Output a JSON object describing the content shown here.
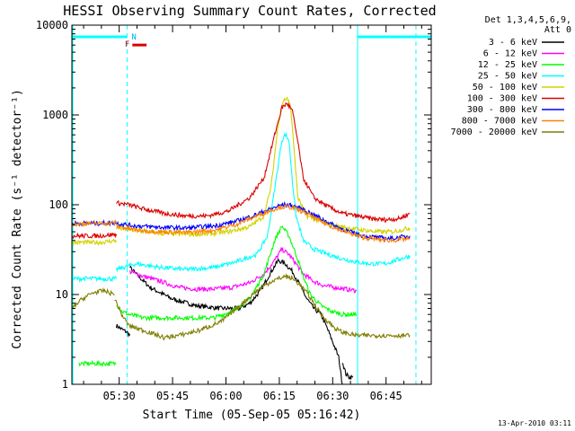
{
  "chart_data": {
    "type": "line",
    "title": "HESSI Observing Summary Count Rates, Corrected",
    "xlabel": "Start Time (05-Sep-05 05:16:42)",
    "ylabel": "Corrected Count Rate (s⁻¹ detector⁻¹)",
    "x_unit": "minutes after 05:16:42",
    "xlim": [
      0,
      101
    ],
    "ylim": [
      1,
      10000
    ],
    "yscale": "log",
    "x_ticks": [
      {
        "value": 13.3,
        "label": "05:30"
      },
      {
        "value": 28.3,
        "label": "05:45"
      },
      {
        "value": 43.3,
        "label": "06:00"
      },
      {
        "value": 58.3,
        "label": "06:15"
      },
      {
        "value": 73.3,
        "label": "06:30"
      },
      {
        "value": 88.3,
        "label": "06:45"
      }
    ],
    "y_ticks": [
      {
        "value": 1,
        "label": "1"
      },
      {
        "value": 10,
        "label": "10"
      },
      {
        "value": 100,
        "label": "100"
      },
      {
        "value": 1000,
        "label": "1000"
      },
      {
        "value": 10000,
        "label": "10000"
      }
    ],
    "legend": {
      "header": [
        "Det 1,3,4,5,6,9,",
        "Att 0"
      ],
      "placement": "right"
    },
    "series": [
      {
        "name": "3 - 6 keV",
        "color": "#000000",
        "segments": [
          [
            [
              12.5,
              4.5
            ],
            [
              14.5,
              4
            ],
            [
              15.5,
              3.8
            ],
            [
              16.3,
              3.5
            ]
          ],
          [
            [
              16.3,
              20
            ],
            [
              18,
              17
            ],
            [
              22,
              12
            ],
            [
              28,
              9
            ],
            [
              35,
              7.5
            ],
            [
              42,
              7
            ],
            [
              47,
              7
            ],
            [
              50,
              8
            ],
            [
              53,
              11
            ],
            [
              56,
              18
            ],
            [
              58,
              24
            ],
            [
              60,
              22
            ],
            [
              62,
              18
            ],
            [
              64,
              13
            ],
            [
              66,
              9
            ],
            [
              68,
              7
            ],
            [
              70,
              6
            ],
            [
              72,
              4
            ],
            [
              75,
              2
            ],
            [
              76,
              1
            ]
          ],
          [
            [
              76,
              1.8
            ],
            [
              77,
              1.3
            ],
            [
              78,
              1.2
            ],
            [
              79,
              1.2
            ]
          ]
        ]
      },
      {
        "name": "6 - 12 keV",
        "color": "#ff00ff",
        "segments": [
          [
            [
              16.3,
              18
            ],
            [
              20,
              16
            ],
            [
              25,
              14
            ],
            [
              30,
              12
            ],
            [
              35,
              11.5
            ],
            [
              40,
              11.5
            ],
            [
              45,
              12
            ],
            [
              50,
              13.5
            ],
            [
              54,
              17
            ],
            [
              57,
              24
            ],
            [
              59,
              32
            ],
            [
              61,
              28
            ],
            [
              63,
              22
            ],
            [
              65,
              17
            ],
            [
              68,
              14
            ],
            [
              71,
              12.5
            ],
            [
              74,
              12
            ],
            [
              77,
              11.5
            ],
            [
              80,
              11
            ]
          ]
        ]
      },
      {
        "name": "12 - 25 keV",
        "color": "#00ff00",
        "segments": [
          [
            [
              2,
              1.7
            ],
            [
              12.5,
              1.7
            ]
          ],
          [
            [
              12.5,
              8
            ],
            [
              14,
              6.5
            ],
            [
              16,
              6
            ],
            [
              20,
              5.5
            ],
            [
              30,
              5.5
            ],
            [
              40,
              5.5
            ],
            [
              45,
              6.5
            ],
            [
              50,
              9
            ],
            [
              54,
              17
            ],
            [
              57,
              40
            ],
            [
              59,
              58
            ],
            [
              61,
              45
            ],
            [
              63,
              28
            ],
            [
              65,
              16
            ],
            [
              67,
              10
            ],
            [
              70,
              7.5
            ],
            [
              73,
              6.5
            ],
            [
              76,
              6
            ],
            [
              80,
              6
            ]
          ]
        ]
      },
      {
        "name": "25 - 50 keV",
        "color": "#00ffff",
        "segments": [
          [
            [
              0,
              15
            ],
            [
              3,
              15
            ],
            [
              6,
              15
            ],
            [
              9,
              15
            ],
            [
              12.5,
              15
            ]
          ],
          [
            [
              12.5,
              19
            ],
            [
              18,
              22
            ],
            [
              25,
              20
            ],
            [
              32,
              19
            ],
            [
              40,
              20
            ],
            [
              46,
              23
            ],
            [
              52,
              28
            ],
            [
              55,
              45
            ],
            [
              57,
              150
            ],
            [
              59,
              520
            ],
            [
              60,
              610
            ],
            [
              61,
              520
            ],
            [
              62,
              180
            ],
            [
              63,
              75
            ],
            [
              65,
              40
            ],
            [
              68,
              32
            ],
            [
              72,
              28
            ],
            [
              76,
              25
            ],
            [
              80,
              23
            ],
            [
              84,
              22
            ],
            [
              88,
              22
            ],
            [
              91,
              24
            ],
            [
              95,
              27
            ]
          ]
        ]
      },
      {
        "name": "50 - 100 keV",
        "color": "#d2d200",
        "segments": [
          [
            [
              0,
              38
            ],
            [
              4,
              38
            ],
            [
              8,
              38
            ],
            [
              12.5,
              40
            ]
          ],
          [
            [
              12.5,
              55
            ],
            [
              18,
              52
            ],
            [
              25,
              48
            ],
            [
              32,
              47
            ],
            [
              38,
              47
            ],
            [
              44,
              50
            ],
            [
              50,
              57
            ],
            [
              54,
              75
            ],
            [
              56,
              160
            ],
            [
              58,
              800
            ],
            [
              59.5,
              1450
            ],
            [
              60.5,
              1550
            ],
            [
              61.5,
              1200
            ],
            [
              62.5,
              400
            ],
            [
              63.5,
              120
            ],
            [
              66,
              75
            ],
            [
              70,
              65
            ],
            [
              74,
              58
            ],
            [
              78,
              55
            ],
            [
              82,
              52
            ],
            [
              86,
              50
            ],
            [
              90,
              50
            ],
            [
              95,
              55
            ]
          ]
        ]
      },
      {
        "name": "100 - 300 keV",
        "color": "#dc0000",
        "segments": [
          [
            [
              0,
              45
            ],
            [
              4,
              45
            ],
            [
              8,
              45
            ],
            [
              12.5,
              47
            ]
          ],
          [
            [
              12.5,
              105
            ],
            [
              16,
              100
            ],
            [
              20,
              90
            ],
            [
              26,
              80
            ],
            [
              32,
              75
            ],
            [
              38,
              75
            ],
            [
              44,
              85
            ],
            [
              50,
              120
            ],
            [
              54,
              200
            ],
            [
              57,
              600
            ],
            [
              59,
              1200
            ],
            [
              60.5,
              1350
            ],
            [
              62,
              1100
            ],
            [
              63.5,
              500
            ],
            [
              65,
              200
            ],
            [
              68,
              120
            ],
            [
              72,
              95
            ],
            [
              76,
              80
            ],
            [
              80,
              75
            ],
            [
              84,
              70
            ],
            [
              88,
              68
            ],
            [
              92,
              70
            ],
            [
              95,
              80
            ]
          ]
        ]
      },
      {
        "name": "300 - 800 keV",
        "color": "#0000ff",
        "segments": [
          [
            [
              0,
              62
            ],
            [
              4,
              62
            ],
            [
              8,
              62
            ],
            [
              12.5,
              63
            ]
          ],
          [
            [
              12.5,
              62
            ],
            [
              18,
              58
            ],
            [
              25,
              56
            ],
            [
              32,
              55
            ],
            [
              40,
              58
            ],
            [
              46,
              65
            ],
            [
              52,
              78
            ],
            [
              56,
              90
            ],
            [
              59,
              100
            ],
            [
              62,
              98
            ],
            [
              66,
              85
            ],
            [
              70,
              70
            ],
            [
              74,
              58
            ],
            [
              78,
              50
            ],
            [
              82,
              45
            ],
            [
              86,
              43
            ],
            [
              90,
              42
            ],
            [
              95,
              45
            ]
          ]
        ]
      },
      {
        "name": "800 - 7000 keV",
        "color": "#ff8000",
        "segments": [
          [
            [
              0,
              60
            ],
            [
              4,
              62
            ],
            [
              8,
              62
            ],
            [
              12.5,
              63
            ]
          ],
          [
            [
              12.5,
              58
            ],
            [
              18,
              52
            ],
            [
              25,
              50
            ],
            [
              32,
              49
            ],
            [
              40,
              52
            ],
            [
              46,
              60
            ],
            [
              52,
              75
            ],
            [
              56,
              87
            ],
            [
              59,
              95
            ],
            [
              62,
              93
            ],
            [
              66,
              80
            ],
            [
              70,
              65
            ],
            [
              74,
              55
            ],
            [
              78,
              48
            ],
            [
              82,
              43
            ],
            [
              86,
              41
            ],
            [
              90,
              40
            ],
            [
              95,
              42
            ]
          ]
        ]
      },
      {
        "name": "7000 - 20000 keV",
        "color": "#7f7f00",
        "segments": [
          [
            [
              0,
              7
            ],
            [
              3,
              9
            ],
            [
              6,
              10.5
            ],
            [
              9,
              11
            ],
            [
              12,
              10
            ]
          ],
          [
            [
              12,
              9
            ],
            [
              14,
              6
            ],
            [
              16,
              4.5
            ],
            [
              20,
              4
            ],
            [
              26,
              3.3
            ],
            [
              30,
              3.5
            ],
            [
              36,
              4
            ],
            [
              42,
              5
            ],
            [
              48,
              8
            ],
            [
              52,
              11
            ],
            [
              56,
              14
            ],
            [
              60,
              16
            ],
            [
              62,
              15
            ],
            [
              64,
              13
            ],
            [
              66,
              10.5
            ],
            [
              68,
              8
            ],
            [
              70,
              6
            ],
            [
              72,
              5
            ],
            [
              74,
              4.2
            ],
            [
              76,
              3.8
            ],
            [
              80,
              3.5
            ],
            [
              85,
              3.5
            ],
            [
              90,
              3.5
            ],
            [
              95,
              3.5
            ]
          ]
        ]
      }
    ],
    "annotations": {
      "flag_bar_color": "#00ffff",
      "flag_bars": [
        [
          0,
          15.5
        ],
        [
          80.3,
          101
        ]
      ],
      "dashed_verticals": [
        15.5,
        96.7
      ],
      "solid_verticals": [
        80.3
      ],
      "flare_marker": {
        "label_left": "F",
        "label_right": "N",
        "x_start": 17,
        "x_end": 21,
        "y": 6000,
        "color": "#dc0000",
        "label_right_color": "#00aaff"
      }
    },
    "timestamp": "13-Apr-2010 03:11"
  }
}
